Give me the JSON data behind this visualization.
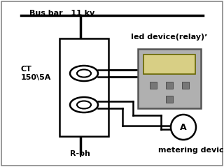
{
  "bg_color": "#ffffff",
  "bus_bar_label": "Bus bar   11 kv",
  "ct_label": "CT\n150\\5A",
  "rph_label": "R-ph",
  "relay_label": "Ied device(relay)ʼ",
  "meter_label": "metering device",
  "meter_symbol": "A",
  "line_color": "#000000",
  "lw": 1.8,
  "bus_lw": 2.5,
  "border_color": "#aaaaaa"
}
